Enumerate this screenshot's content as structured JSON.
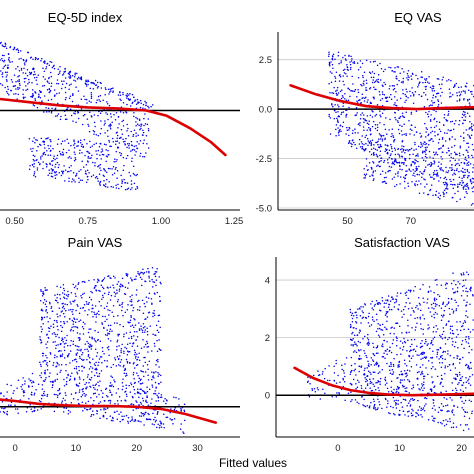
{
  "colors": {
    "points": "#0000ee",
    "smooth": "#dd0000",
    "grid": "#c9c9c9",
    "axis": "#000000"
  },
  "chart_data": [
    {
      "type": "scatter",
      "title": "EQ-5D index",
      "xticks": [
        "0.50",
        "0.75",
        "1.00",
        "1.25"
      ],
      "yticks": [],
      "xlim": [
        0.45,
        1.27
      ],
      "ylim": [
        -1.9,
        1.5
      ],
      "reference_line": 0,
      "smooth": {
        "x": [
          0.45,
          0.55,
          0.65,
          0.75,
          0.85,
          0.95,
          1.02,
          1.1,
          1.17,
          1.22
        ],
        "y": [
          0.22,
          0.16,
          0.1,
          0.06,
          0.04,
          0.0,
          -0.1,
          -0.34,
          -0.6,
          -0.85
        ]
      },
      "point_clouds": [
        {
          "x_range": [
            0.45,
            0.96
          ],
          "y_top": [
            1.15,
            0.2
          ],
          "y_bottom": [
            0.35,
            -0.95
          ],
          "n": 480
        },
        {
          "x_range": [
            0.55,
            0.92
          ],
          "y_top": [
            -0.5,
            -0.6
          ],
          "y_bottom": [
            -1.25,
            -1.55
          ],
          "n": 340
        },
        {
          "x_range": [
            0.45,
            0.98
          ],
          "y_top": [
            1.34,
            0.1
          ],
          "y_bottom": [
            1.24,
            0.0
          ],
          "n": 110
        }
      ]
    },
    {
      "type": "scatter",
      "title": "EQ VAS",
      "xticks": [
        "50",
        "70"
      ],
      "yticks": [
        "2.5",
        "0.0",
        "-2.5",
        "-5.0"
      ],
      "xlim": [
        28,
        90
      ],
      "ylim": [
        -5.1,
        3.9
      ],
      "reference_line": 0,
      "smooth": {
        "x": [
          32,
          40,
          48,
          56,
          64,
          72,
          80,
          90
        ],
        "y": [
          1.2,
          0.75,
          0.4,
          0.15,
          0.05,
          0.0,
          0.05,
          0.1
        ]
      },
      "point_clouds": [
        {
          "x_range": [
            44,
            90
          ],
          "y_top": [
            3.0,
            1.3
          ],
          "y_bottom": [
            -1.5,
            -4.3
          ],
          "n": 900
        },
        {
          "x_range": [
            55,
            90
          ],
          "y_top": [
            -1.4,
            -2.4
          ],
          "y_bottom": [
            -3.5,
            -5.0
          ],
          "n": 280
        }
      ]
    },
    {
      "type": "scatter",
      "title": "Pain VAS",
      "xticks": [
        "0",
        "10",
        "20",
        "30"
      ],
      "yticks": [],
      "xlim": [
        -2.5,
        37
      ],
      "ylim": [
        -2.1,
        10.4
      ],
      "reference_line": 0,
      "smooth": {
        "x": [
          -2.5,
          0,
          4,
          8,
          12,
          16,
          20,
          24,
          28,
          33
        ],
        "y": [
          0.5,
          0.4,
          0.2,
          0.1,
          0.05,
          0.05,
          0.0,
          -0.15,
          -0.5,
          -1.1
        ]
      },
      "point_clouds": [
        {
          "x_range": [
            4,
            24
          ],
          "y_top": [
            8.2,
            9.8
          ],
          "y_bottom": [
            -0.2,
            -1.5
          ],
          "n": 1100
        },
        {
          "x_range": [
            -2.5,
            4
          ],
          "y_top": [
            1.5,
            2.5
          ],
          "y_bottom": [
            -0.6,
            -0.3
          ],
          "n": 80
        },
        {
          "x_range": [
            20,
            28
          ],
          "y_top": [
            1.5,
            0.5
          ],
          "y_bottom": [
            -1.2,
            -1.9
          ],
          "n": 90
        }
      ]
    },
    {
      "type": "scatter",
      "title": "Satisfaction VAS",
      "xticks": [
        "0",
        "10",
        "20"
      ],
      "yticks": [
        "4",
        "2",
        "0"
      ],
      "xlim": [
        -10,
        22
      ],
      "ylim": [
        -1.45,
        4.8
      ],
      "reference_line": 0,
      "smooth": {
        "x": [
          -7,
          -4,
          -1,
          2,
          5,
          8,
          12,
          16,
          22
        ],
        "y": [
          0.95,
          0.6,
          0.35,
          0.18,
          0.08,
          0.03,
          0.0,
          0.02,
          0.05
        ]
      },
      "point_clouds": [
        {
          "x_range": [
            2,
            22
          ],
          "y_top": [
            3.0,
            4.5
          ],
          "y_bottom": [
            -0.3,
            -1.35
          ],
          "n": 1000
        },
        {
          "x_range": [
            -5,
            2
          ],
          "y_top": [
            0.9,
            1.4
          ],
          "y_bottom": [
            -0.1,
            -0.2
          ],
          "n": 60
        }
      ]
    }
  ],
  "x_axis_title": "Fitted values"
}
